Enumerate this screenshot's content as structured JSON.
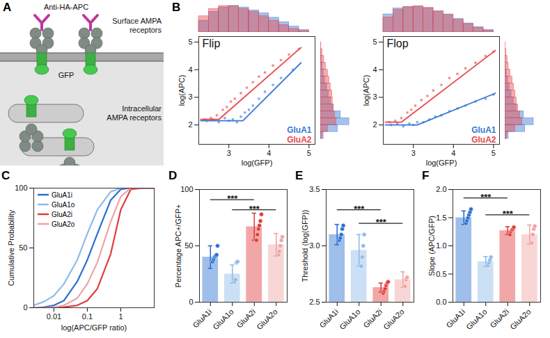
{
  "diagram": {
    "panel": "A",
    "labels": {
      "antibody": "Anti-HA-APC",
      "surface": "Surface AMPA receptors",
      "gfp": "GFP",
      "intracellular": "Intracellular AMPA receptors"
    }
  },
  "chart_data": [
    {
      "panel": "B",
      "type": "scatter",
      "title": "Flip",
      "x_label": "log(GFP)",
      "y_label": "log(APC)",
      "xlim": [
        2.25,
        5.15
      ],
      "ylim": [
        1.3,
        5.2
      ],
      "xticks": [
        3,
        4,
        5
      ],
      "yticks": [
        2,
        3,
        4,
        5
      ],
      "legend": "bottom-right",
      "series": [
        {
          "name": "GluA1",
          "color": "#3a78d4",
          "x": [
            2.45,
            2.6,
            2.75,
            2.9,
            3.0,
            3.1,
            3.2,
            3.3,
            3.4,
            3.5,
            3.6,
            3.75,
            3.9,
            4.1,
            4.3,
            4.6
          ],
          "values": [
            2.15,
            2.2,
            2.1,
            2.25,
            2.15,
            2.2,
            2.1,
            2.3,
            2.45,
            2.55,
            2.7,
            2.95,
            3.2,
            3.45,
            3.7,
            4.0
          ],
          "fit": {
            "x": [
              2.3,
              3.35,
              4.8
            ],
            "values": [
              2.15,
              2.15,
              4.25
            ]
          }
        },
        {
          "name": "GluA2",
          "color": "#e8474a",
          "x": [
            2.4,
            2.55,
            2.7,
            2.85,
            2.95,
            3.05,
            3.15,
            3.3,
            3.45,
            3.6,
            3.75,
            3.9,
            4.1,
            4.3,
            4.5,
            4.75
          ],
          "values": [
            2.2,
            2.25,
            2.35,
            2.55,
            2.65,
            2.85,
            2.95,
            3.15,
            3.35,
            3.55,
            3.75,
            3.9,
            4.15,
            4.35,
            4.55,
            4.75
          ],
          "fit": {
            "x": [
              2.3,
              2.75,
              4.8
            ],
            "values": [
              2.2,
              2.2,
              4.8
            ]
          }
        }
      ],
      "x_histogram": {
        "bins": [
          2.25,
          2.5,
          2.75,
          3.0,
          3.25,
          3.5,
          3.75,
          4.0,
          4.25,
          4.5,
          4.75,
          5.0
        ],
        "series": [
          {
            "name": "GluA1",
            "values": [
              40,
              70,
              85,
              90,
              85,
              75,
              65,
              50,
              35,
              20,
              8
            ]
          },
          {
            "name": "GluA2",
            "values": [
              55,
              80,
              90,
              90,
              80,
              70,
              55,
              40,
              25,
              12,
              5
            ]
          }
        ]
      },
      "y_histogram": {
        "bins": [
          1.5,
          1.75,
          2.0,
          2.25,
          2.5,
          2.75,
          3.0,
          3.25,
          3.5,
          3.75,
          4.0,
          4.25,
          4.5,
          4.75,
          5.0
        ],
        "series": [
          {
            "name": "GluA1",
            "values": [
              10,
              60,
              100,
              70,
              45,
              35,
              28,
              22,
              15,
              10,
              6,
              3,
              1,
              0
            ]
          },
          {
            "name": "GluA2",
            "values": [
              5,
              25,
              55,
              50,
              45,
              42,
              40,
              35,
              30,
              25,
              18,
              12,
              6,
              2
            ]
          }
        ]
      }
    },
    {
      "type": "scatter",
      "title": "Flop",
      "x_label": "log(GFP)",
      "y_label": "log(APC)",
      "xlim": [
        2.25,
        5.15
      ],
      "ylim": [
        1.3,
        5.2
      ],
      "xticks": [
        3,
        4,
        5
      ],
      "yticks": [
        2,
        3,
        4,
        5
      ],
      "legend": "bottom-right",
      "series": [
        {
          "name": "GluA1",
          "color": "#3a78d4",
          "x": [
            2.45,
            2.6,
            2.75,
            2.9,
            3.0,
            3.1,
            3.25,
            3.4,
            3.55,
            3.7,
            3.9,
            4.1,
            4.3,
            4.55,
            4.8,
            5.0
          ],
          "values": [
            2.0,
            2.05,
            1.95,
            2.05,
            2.0,
            2.1,
            2.1,
            2.2,
            2.3,
            2.35,
            2.5,
            2.6,
            2.7,
            2.85,
            2.95,
            3.1
          ],
          "fit": {
            "x": [
              2.3,
              3.1,
              5.05
            ],
            "values": [
              2.0,
              2.0,
              3.15
            ]
          }
        },
        {
          "name": "GluA2",
          "color": "#e8474a",
          "x": [
            2.4,
            2.55,
            2.7,
            2.85,
            2.95,
            3.05,
            3.2,
            3.35,
            3.5,
            3.7,
            3.9,
            4.1,
            4.3,
            4.55,
            4.8,
            5.0
          ],
          "values": [
            2.1,
            2.15,
            2.25,
            2.45,
            2.55,
            2.7,
            2.9,
            3.05,
            3.25,
            3.45,
            3.7,
            3.85,
            4.05,
            4.25,
            4.5,
            4.65
          ],
          "fit": {
            "x": [
              2.3,
              2.7,
              5.05
            ],
            "values": [
              2.1,
              2.1,
              4.7
            ]
          }
        }
      ],
      "x_histogram": {
        "bins": [
          2.25,
          2.5,
          2.75,
          3.0,
          3.25,
          3.5,
          3.75,
          4.0,
          4.25,
          4.5,
          4.75,
          5.0
        ],
        "series": [
          {
            "name": "GluA1",
            "values": [
              60,
              80,
              85,
              85,
              80,
              70,
              60,
              45,
              30,
              18,
              8
            ]
          },
          {
            "name": "GluA2",
            "values": [
              50,
              75,
              85,
              88,
              82,
              70,
              58,
              42,
              28,
              15,
              6
            ]
          }
        ]
      },
      "y_histogram": {
        "bins": [
          1.5,
          1.75,
          2.0,
          2.25,
          2.5,
          2.75,
          3.0,
          3.25,
          3.5,
          3.75,
          4.0,
          4.25,
          4.5,
          4.75,
          5.0
        ],
        "series": [
          {
            "name": "GluA1",
            "values": [
              12,
              70,
              100,
              65,
              40,
              30,
              22,
              15,
              10,
              5,
              2,
              1,
              0,
              0
            ]
          },
          {
            "name": "GluA2",
            "values": [
              6,
              35,
              60,
              52,
              45,
              40,
              35,
              30,
              25,
              18,
              12,
              8,
              4,
              1
            ]
          }
        ]
      }
    },
    {
      "panel": "C",
      "type": "line",
      "x_label": "log(APC/GFP ratio)",
      "y_label": "Cumulative Probability",
      "log": "x",
      "xlim": [
        0.0025,
        10
      ],
      "ylim": [
        0,
        100
      ],
      "xticks": [
        0.01,
        0.1,
        1
      ],
      "yticks": [
        0,
        50,
        100
      ],
      "legend": "top-left",
      "x": [
        0.0025,
        0.005,
        0.01,
        0.02,
        0.05,
        0.1,
        0.2,
        0.5,
        1,
        2,
        5,
        10
      ],
      "series": [
        {
          "name": "GluA1i",
          "color": "#2a6fd0",
          "values": [
            0,
            0.5,
            2,
            6,
            22,
            40,
            62,
            90,
            99,
            100,
            100,
            100
          ]
        },
        {
          "name": "GluA1o",
          "color": "#8fbbe8",
          "values": [
            2,
            5,
            10,
            20,
            40,
            62,
            82,
            97,
            100,
            100,
            100,
            100
          ]
        },
        {
          "name": "GluA2i",
          "color": "#e03c3c",
          "values": [
            0,
            0,
            0,
            0.5,
            2,
            6,
            16,
            45,
            82,
            99,
            100,
            100
          ]
        },
        {
          "name": "GluA2o",
          "color": "#f0a3a3",
          "values": [
            0,
            0,
            0.5,
            2,
            8,
            20,
            38,
            72,
            93,
            100,
            100,
            100
          ]
        }
      ]
    },
    {
      "panel": "D",
      "type": "bar",
      "y_label": "Percentage APC+/GFP+",
      "categories": [
        "GluA1i",
        "GluA1o",
        "GluA2i",
        "GluA2o"
      ],
      "values": [
        40,
        25,
        67,
        51
      ],
      "errors": [
        10,
        8,
        12,
        10
      ],
      "colors": [
        "#2a6fd0",
        "#8fbbe8",
        "#e03c3c",
        "#f0a3a3"
      ],
      "points": [
        [
          36,
          38,
          40,
          41,
          42,
          50
        ],
        [
          18,
          20,
          35,
          36
        ],
        [
          55,
          60,
          65,
          68,
          72,
          78
        ],
        [
          42,
          45,
          50,
          55,
          58
        ]
      ],
      "ylim": [
        0,
        100
      ],
      "yticks": [
        0,
        50,
        100
      ],
      "annotations": [
        {
          "from": "GluA1i",
          "to": "GluA2i",
          "y": 91,
          "text": "***"
        },
        {
          "from": "GluA1o",
          "to": "GluA2o",
          "y": 82,
          "text": "***"
        }
      ]
    },
    {
      "panel": "E",
      "type": "bar",
      "y_label": "Threshold (log(GFP))",
      "categories": [
        "GluA1i",
        "GluA1o",
        "GluA2i",
        "GluA2o"
      ],
      "values": [
        3.1,
        2.96,
        2.63,
        2.7
      ],
      "errors": [
        0.09,
        0.14,
        0.04,
        0.07
      ],
      "colors": [
        "#2a6fd0",
        "#8fbbe8",
        "#e03c3c",
        "#f0a3a3"
      ],
      "points": [
        [
          3.05,
          3.07,
          3.1,
          3.15,
          3.18
        ],
        [
          2.82,
          2.9,
          3.0,
          3.1
        ],
        [
          2.58,
          2.6,
          2.62,
          2.65,
          2.67,
          2.68
        ],
        [
          2.64,
          2.7,
          2.72
        ]
      ],
      "ylim": [
        2.5,
        3.5
      ],
      "yticks": [
        2.5,
        {
          "value": 3,
          "label": "3.0"
        },
        3.5
      ],
      "annotations": [
        {
          "from": "GluA1i",
          "to": "GluA2i",
          "y": 3.32,
          "text": "***"
        },
        {
          "from": "GluA1o",
          "to": "GluA2o",
          "y": 3.2,
          "text": "***"
        }
      ]
    },
    {
      "panel": "F",
      "type": "bar",
      "y_label": "Slope (APC/GFP)",
      "categories": [
        "GluA1i",
        "GluA1o",
        "GluA2i",
        "GluA2o"
      ],
      "values": [
        1.5,
        0.72,
        1.27,
        1.2
      ],
      "errors": [
        0.12,
        0.09,
        0.07,
        0.17
      ],
      "colors": [
        "#2a6fd0",
        "#8fbbe8",
        "#e03c3c",
        "#f0a3a3"
      ],
      "points": [
        [
          1.4,
          1.45,
          1.5,
          1.55,
          1.6,
          1.65
        ],
        [
          0.65,
          0.7,
          0.75,
          0.8
        ],
        [
          1.2,
          1.25,
          1.28,
          1.3,
          1.33
        ],
        [
          1.05,
          1.2,
          1.3,
          1.35
        ]
      ],
      "ylim": [
        0,
        2
      ],
      "yticks": [
        {
          "value": 0,
          "label": "0.0"
        },
        0.5,
        {
          "value": 1,
          "label": "1.0"
        },
        1.5,
        {
          "value": 2,
          "label": "2.0"
        }
      ],
      "annotations": [
        {
          "from": "GluA1i",
          "to": "GluA2i",
          "y": 1.85,
          "text": "***"
        },
        {
          "from": "GluA1o",
          "to": "GluA2o",
          "y": 1.55,
          "text": "***"
        }
      ]
    }
  ]
}
